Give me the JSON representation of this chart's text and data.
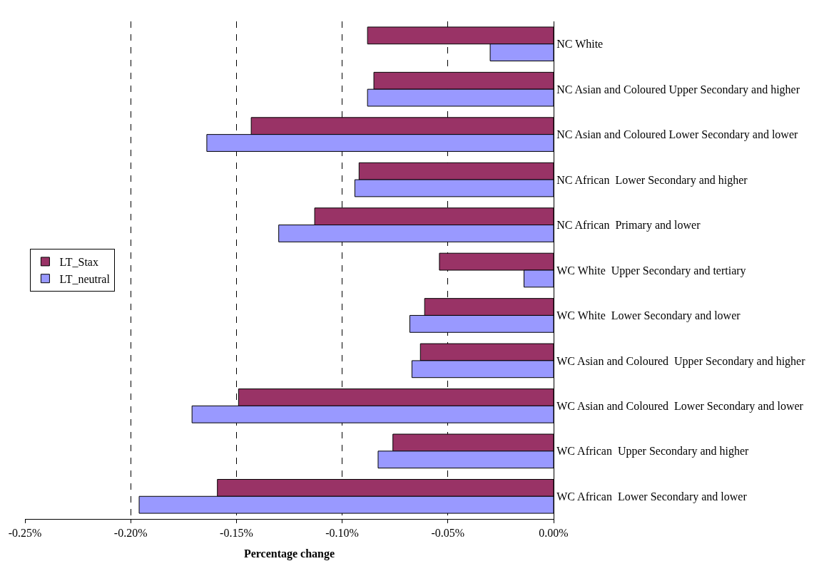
{
  "chart_data": {
    "type": "bar",
    "orientation": "horizontal",
    "xlabel": "Percentage change",
    "categories": [
      "NC White",
      "NC Asian and Coloured Upper Secondary and higher",
      "NC Asian and Coloured Lower Secondary and lower",
      "NC African  Lower Secondary and higher",
      "NC African  Primary and lower",
      "WC White  Upper Secondary and tertiary",
      "WC White  Lower Secondary and lower",
      "WC Asian and Coloured  Upper Secondary and higher",
      "WC Asian and Coloured  Lower Secondary and lower",
      "WC African  Upper Secondary and higher",
      "WC African  Lower Secondary and lower"
    ],
    "series": [
      {
        "name": "LT_Stax",
        "color": "#993366",
        "values": [
          -0.088,
          -0.085,
          -0.143,
          -0.092,
          -0.113,
          -0.054,
          -0.061,
          -0.063,
          -0.149,
          -0.076,
          -0.159
        ]
      },
      {
        "name": "LT_neutral",
        "color": "#9999ff",
        "values": [
          -0.03,
          -0.088,
          -0.164,
          -0.094,
          -0.13,
          -0.014,
          -0.068,
          -0.067,
          -0.171,
          -0.083,
          -0.196
        ]
      }
    ],
    "xlim": [
      -0.25,
      0
    ],
    "xticks": [
      {
        "value": -0.25,
        "label": "-0.25%"
      },
      {
        "value": -0.2,
        "label": "-0.20%"
      },
      {
        "value": -0.15,
        "label": "-0.15%"
      },
      {
        "value": -0.1,
        "label": "-0.10%"
      },
      {
        "value": -0.05,
        "label": "-0.05%"
      },
      {
        "value": 0,
        "label": "0.00%"
      }
    ],
    "grid": "x",
    "legend": "left"
  }
}
